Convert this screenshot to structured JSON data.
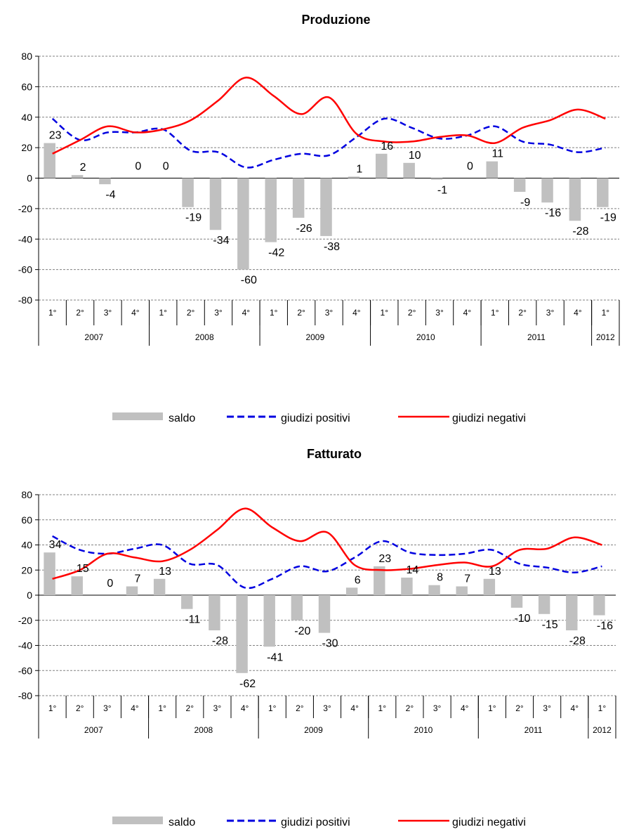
{
  "chart_data": [
    {
      "type": "bar",
      "title": "Produzione",
      "ylim": [
        -80,
        80
      ],
      "yticks": [
        "80",
        "60",
        "40",
        "20",
        "0",
        "-20",
        "-40",
        "-60",
        "-80"
      ],
      "categories": [
        "1°",
        "2°",
        "3°",
        "4°",
        "1°",
        "2°",
        "3°",
        "4°",
        "1°",
        "2°",
        "3°",
        "4°",
        "1°",
        "2°",
        "3°",
        "4°",
        "1°",
        "2°",
        "3°",
        "4°",
        "1°"
      ],
      "years": [
        "2007",
        "2008",
        "2009",
        "2010",
        "2011",
        "2012"
      ],
      "grid": true,
      "legend_position": "bottom",
      "series": [
        {
          "name": "saldo",
          "type": "bar",
          "color": "#c0c0c0",
          "values": [
            23,
            2,
            -4,
            0,
            0,
            -19,
            -34,
            -60,
            -42,
            -26,
            -38,
            1,
            16,
            10,
            -1,
            0,
            11,
            -9,
            -16,
            -28,
            -19
          ],
          "labels": [
            "23",
            "2",
            "-4",
            "0",
            "0",
            "-19",
            "-34",
            "-60",
            "-42",
            "-26",
            "-38",
            "1",
            "16",
            "10",
            "-1",
            "0",
            "11",
            "-9",
            "-16",
            "-28",
            "-19"
          ]
        },
        {
          "name": "giudizi positivi",
          "type": "line",
          "style": "dashed",
          "color": "#0000e0",
          "values": [
            39,
            25,
            30,
            30,
            32,
            18,
            17,
            7,
            12,
            16,
            15,
            27,
            39,
            33,
            26,
            28,
            34,
            24,
            22,
            17,
            20
          ]
        },
        {
          "name": "giudizi negativi",
          "type": "line",
          "style": "solid",
          "color": "#ff0000",
          "values": [
            16,
            25,
            34,
            30,
            32,
            38,
            51,
            66,
            54,
            42,
            53,
            29,
            24,
            24,
            27,
            28,
            23,
            33,
            38,
            45,
            39
          ]
        }
      ]
    },
    {
      "type": "bar",
      "title": "Fatturato",
      "ylim": [
        -80,
        80
      ],
      "yticks": [
        "80",
        "60",
        "40",
        "20",
        "0",
        "-20",
        "-40",
        "-60",
        "-80"
      ],
      "categories": [
        "1°",
        "2°",
        "3°",
        "4°",
        "1°",
        "2°",
        "3°",
        "4°",
        "1°",
        "2°",
        "3°",
        "4°",
        "1°",
        "2°",
        "3°",
        "4°",
        "1°",
        "2°",
        "3°",
        "4°",
        "1°"
      ],
      "years": [
        "2007",
        "2008",
        "2009",
        "2010",
        "2011",
        "2012"
      ],
      "grid": true,
      "legend_position": "bottom",
      "series": [
        {
          "name": "saldo",
          "type": "bar",
          "color": "#c0c0c0",
          "values": [
            34,
            15,
            0,
            7,
            13,
            -11,
            -28,
            -62,
            -41,
            -20,
            -30,
            6,
            23,
            14,
            8,
            7,
            13,
            -10,
            -15,
            -28,
            -16
          ],
          "labels": [
            "34",
            "15",
            "0",
            "7",
            "13",
            "-11",
            "-28",
            "-62",
            "-41",
            "-20",
            "-30",
            "6",
            "23",
            "14",
            "8",
            "7",
            "13",
            "-10",
            "-15",
            "-28",
            "-16"
          ]
        },
        {
          "name": "giudizi positivi",
          "type": "line",
          "style": "dashed",
          "color": "#0000e0",
          "values": [
            47,
            36,
            33,
            37,
            40,
            25,
            24,
            6,
            13,
            23,
            19,
            30,
            43,
            34,
            32,
            33,
            36,
            25,
            22,
            18,
            23
          ]
        },
        {
          "name": "giudizi negativi",
          "type": "line",
          "style": "solid",
          "color": "#ff0000",
          "values": [
            13,
            20,
            33,
            30,
            27,
            36,
            52,
            69,
            54,
            43,
            50,
            24,
            20,
            21,
            24,
            26,
            23,
            36,
            37,
            46,
            40
          ]
        }
      ]
    }
  ]
}
